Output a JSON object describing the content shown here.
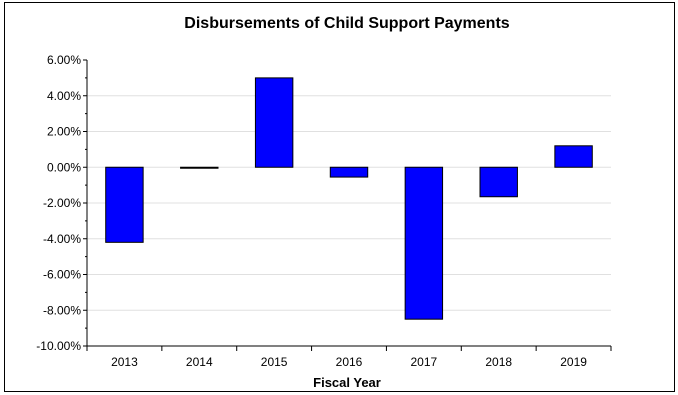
{
  "chart_data": {
    "type": "bar",
    "title": "Disbursements of Child Support Payments",
    "xlabel": "Fiscal Year",
    "ylabel": "",
    "categories": [
      "2013",
      "2014",
      "2015",
      "2016",
      "2017",
      "2018",
      "2019"
    ],
    "series": [
      {
        "values": [
          -4.2,
          -0.05,
          5.0,
          -0.55,
          -8.5,
          -1.65,
          1.2
        ]
      }
    ],
    "ylim": [
      -10,
      6
    ],
    "ytick_step": 2,
    "ytick_labels": [
      "6.00%",
      "4.00%",
      "2.00%",
      "0.00%",
      "-2.00%",
      "-4.00%",
      "-6.00%",
      "-8.00%",
      "-10.00%"
    ],
    "grid": true,
    "legend": "none",
    "bar_color": "#0000ff",
    "bar_edge_color": "#000000",
    "grid_color": "#e0e0e0"
  }
}
